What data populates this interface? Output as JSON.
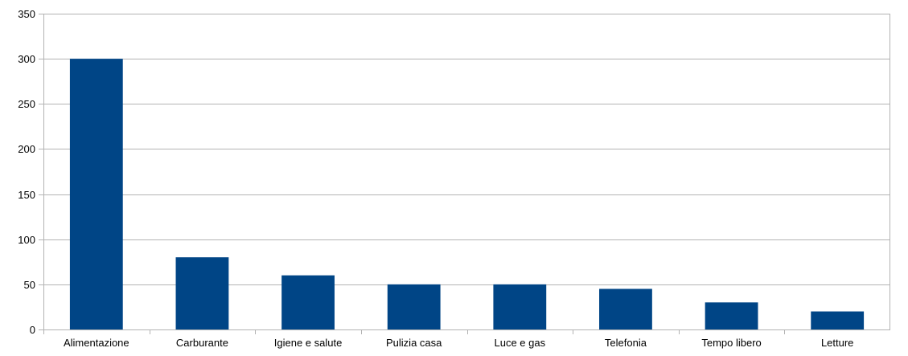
{
  "chart_data": {
    "type": "bar",
    "categories": [
      "Alimentazione",
      "Carburante",
      "Igiene e salute",
      "Pulizia casa",
      "Luce e gas",
      "Telefonia",
      "Tempo libero",
      "Letture"
    ],
    "values": [
      300,
      80,
      60,
      50,
      50,
      45,
      30,
      20
    ],
    "title": "",
    "xlabel": "",
    "ylabel": "",
    "ylim": [
      0,
      350
    ],
    "yticks": [
      0,
      50,
      100,
      150,
      200,
      250,
      300,
      350
    ],
    "grid": true,
    "legend": "none",
    "colors": {
      "bar": "#004586",
      "grid": "#b3b3b3",
      "axis": "#b3b3b3"
    }
  }
}
